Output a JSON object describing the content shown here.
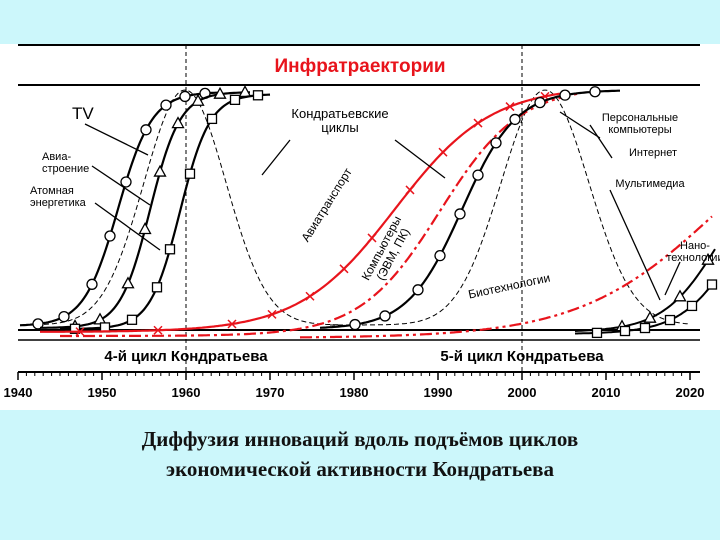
{
  "header": {
    "title": "Инфратраектории"
  },
  "cycles": [
    "4-й цикл Кондратьева",
    "5-й цикл Кондратьева"
  ],
  "axis": {
    "ticks": [
      1940,
      1950,
      1960,
      1970,
      1980,
      1990,
      2000,
      2010,
      2020
    ]
  },
  "labels": [
    {
      "lines": [
        "TV"
      ]
    },
    {
      "lines": [
        "Авиа-",
        "строение"
      ]
    },
    {
      "lines": [
        "Атомная",
        "энергетика"
      ]
    },
    {
      "lines": [
        "Кондратьевские",
        "циклы"
      ]
    },
    {
      "lines": [
        "Авиатранспорт"
      ]
    },
    {
      "lines": [
        "Компьютеры",
        "(ЭВМ, ПК)"
      ]
    },
    {
      "lines": [
        "Биотехнологии"
      ]
    },
    {
      "lines": [
        "Персональные",
        "компьютеры"
      ]
    },
    {
      "lines": [
        "Интернет"
      ]
    },
    {
      "lines": [
        "Мультимедиа"
      ]
    },
    {
      "lines": [
        "Нано-",
        "технологии"
      ]
    }
  ],
  "caption": [
    "Диффузия инноваций вдоль подъёмов циклов",
    "экономической активности Кондратьева"
  ]
}
